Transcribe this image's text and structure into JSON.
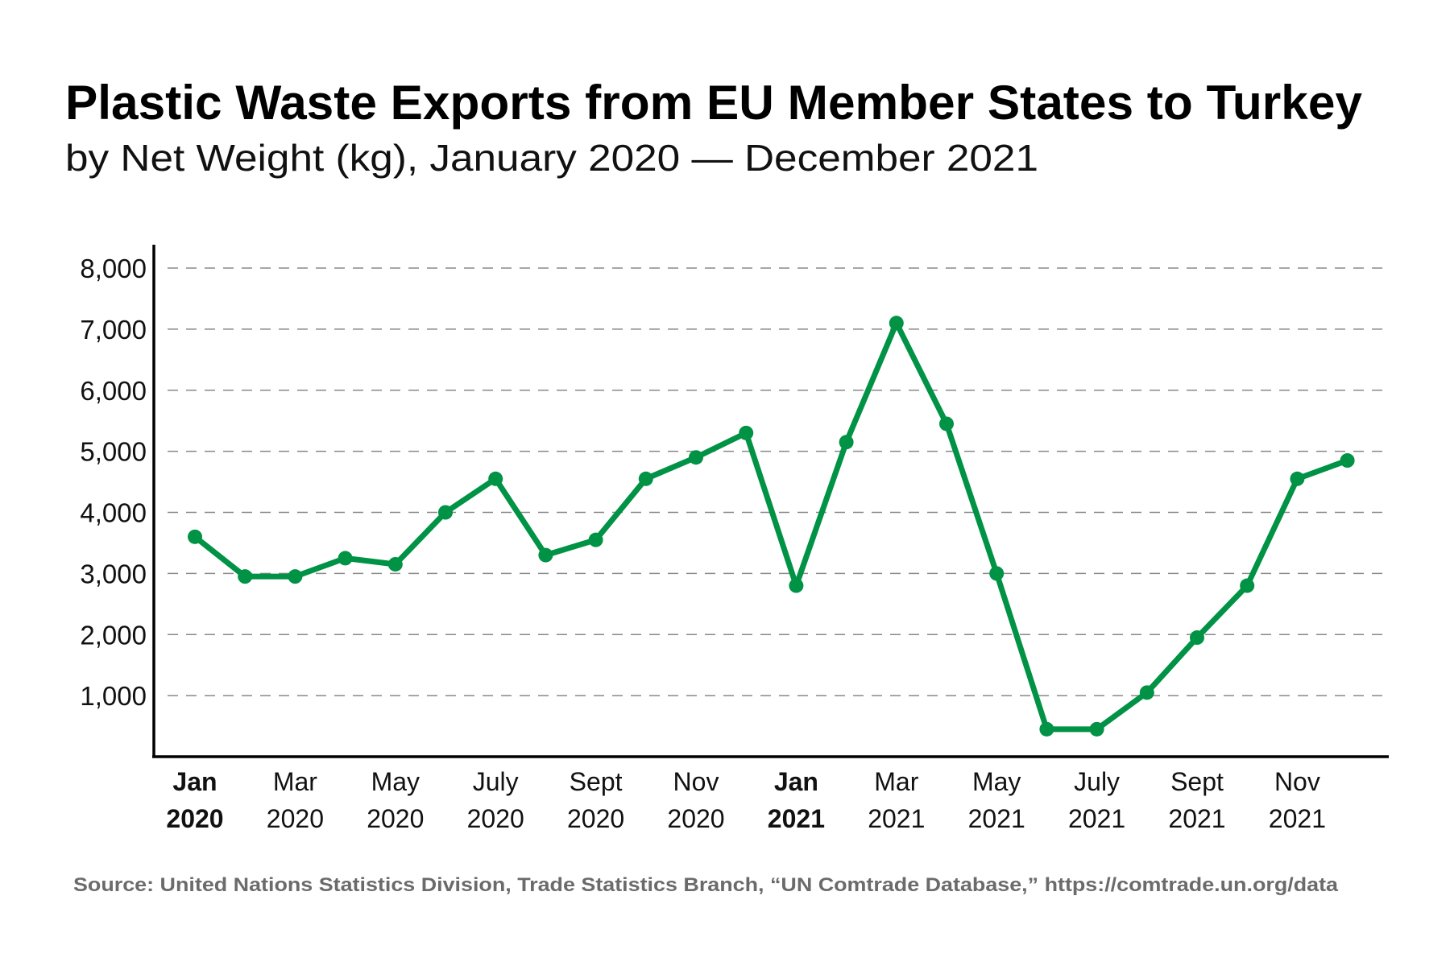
{
  "title": "Plastic Waste Exports from EU Member States to Turkey",
  "subtitle": "by Net Weight (kg), January 2020 — December 2021",
  "source": "Source: United Nations Statistics Division, Trade Statistics Branch, “UN Comtrade Database,” https://comtrade.un.org/data",
  "colors": {
    "line": "#009245",
    "grid": "#888888",
    "axis": "#000000"
  },
  "chart_data": {
    "type": "line",
    "title": "Plastic Waste Exports from EU Member States to Turkey",
    "subtitle": "by Net Weight (kg), January 2020 — December 2021",
    "xlabel": "",
    "ylabel": "",
    "ylim": [
      0,
      8000
    ],
    "grid": true,
    "legend": "none",
    "y_ticks": [
      "1,000",
      "2,000",
      "3,000",
      "4,000",
      "5,000",
      "6,000",
      "7,000",
      "8,000"
    ],
    "y_tick_values": [
      1000,
      2000,
      3000,
      4000,
      5000,
      6000,
      7000,
      8000
    ],
    "x_ticks": [
      {
        "month": "Jan",
        "year": "2020",
        "index": 0,
        "bold": true
      },
      {
        "month": "Mar",
        "year": "2020",
        "index": 2,
        "bold": false
      },
      {
        "month": "May",
        "year": "2020",
        "index": 4,
        "bold": false
      },
      {
        "month": "July",
        "year": "2020",
        "index": 6,
        "bold": false
      },
      {
        "month": "Sept",
        "year": "2020",
        "index": 8,
        "bold": false
      },
      {
        "month": "Nov",
        "year": "2020",
        "index": 10,
        "bold": false
      },
      {
        "month": "Jan",
        "year": "2021",
        "index": 12,
        "bold": true
      },
      {
        "month": "Mar",
        "year": "2021",
        "index": 14,
        "bold": false
      },
      {
        "month": "May",
        "year": "2021",
        "index": 16,
        "bold": false
      },
      {
        "month": "July",
        "year": "2021",
        "index": 18,
        "bold": false
      },
      {
        "month": "Sept",
        "year": "2021",
        "index": 20,
        "bold": false
      },
      {
        "month": "Nov",
        "year": "2021",
        "index": 22,
        "bold": false
      }
    ],
    "x": [
      "2020-01",
      "2020-02",
      "2020-03",
      "2020-04",
      "2020-05",
      "2020-06",
      "2020-07",
      "2020-08",
      "2020-09",
      "2020-10",
      "2020-11",
      "2020-12",
      "2021-01",
      "2021-02",
      "2021-03",
      "2021-04",
      "2021-05",
      "2021-06",
      "2021-07",
      "2021-08",
      "2021-09",
      "2021-10",
      "2021-11",
      "2021-12"
    ],
    "values": [
      3600,
      2950,
      2950,
      3250,
      3150,
      4000,
      4550,
      3300,
      3550,
      4550,
      4900,
      5300,
      2800,
      5150,
      7100,
      5450,
      3000,
      450,
      450,
      1050,
      1950,
      2800,
      4550,
      4850
    ]
  }
}
